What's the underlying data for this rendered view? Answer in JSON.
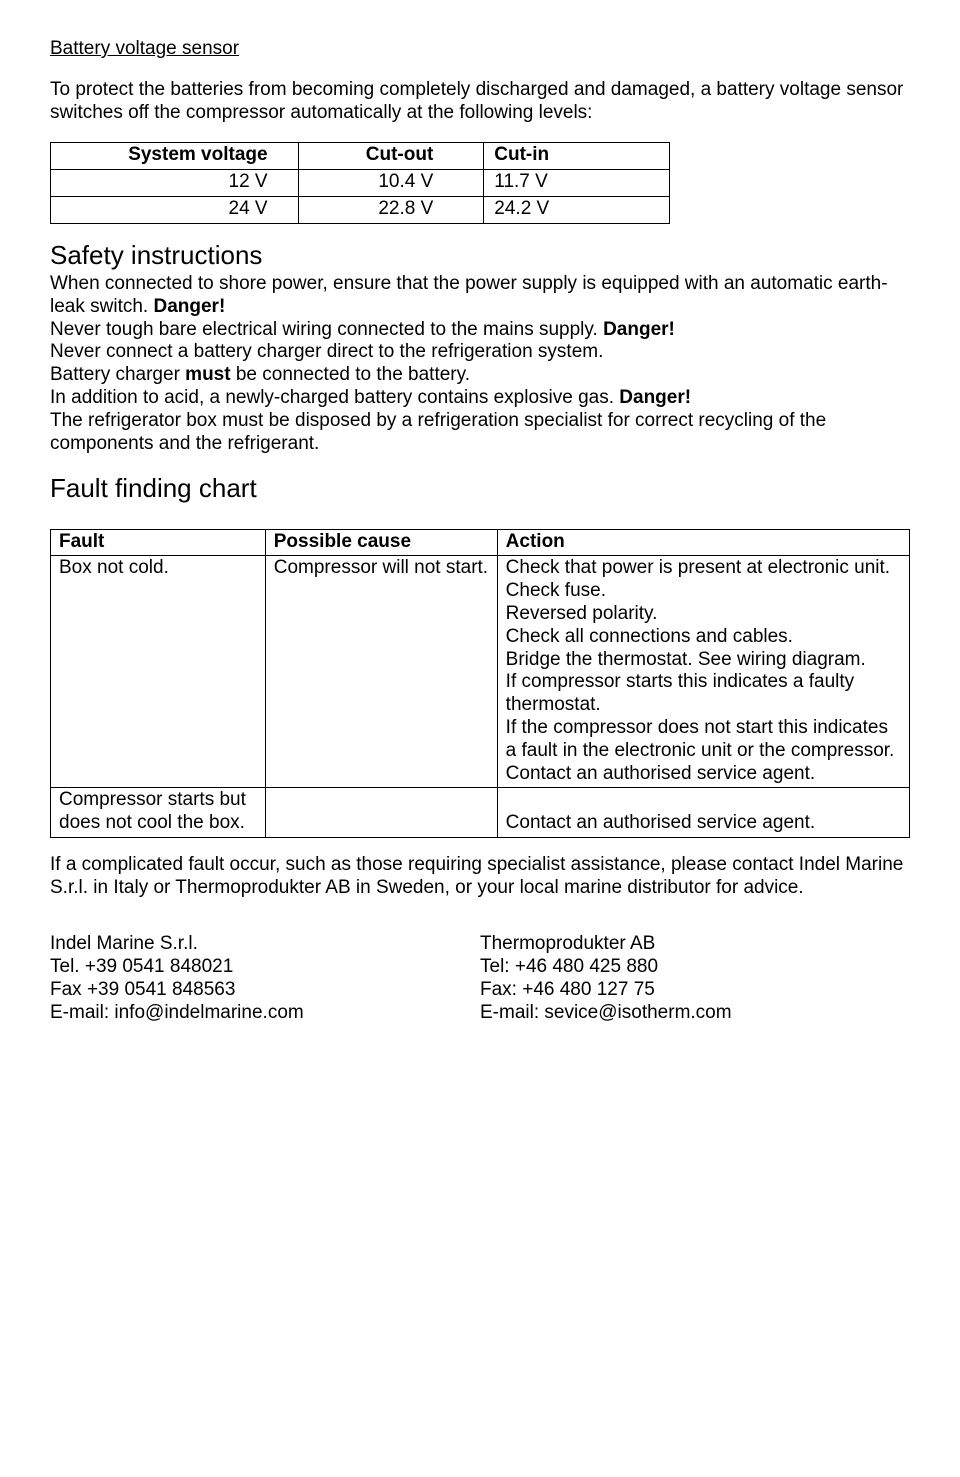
{
  "sec1": {
    "title": "Battery voltage sensor",
    "para": "To protect the batteries from becoming completely discharged and damaged, a battery voltage sensor switches off the compressor automatically at the following levels:"
  },
  "voltageTable": {
    "header": {
      "sys": "System voltage",
      "out": "Cut-out",
      "in": "Cut-in"
    },
    "rows": [
      {
        "sys": "12 V",
        "out": "10.4 V",
        "in": "11.7 V"
      },
      {
        "sys": "24 V",
        "out": "22.8 V",
        "in": "24.2 V"
      }
    ]
  },
  "safety": {
    "title": "Safety instructions",
    "l1": "When connected to shore power, ensure that the power supply is equipped with an automatic earth-leak switch. ",
    "d1": "Danger!",
    "l2": "Never tough bare electrical wiring connected to the mains supply. ",
    "d2": "Danger!",
    "l3": "Never connect a battery charger direct to the refrigeration system.",
    "l4a": "Battery charger ",
    "l4b": "must",
    "l4c": " be connected to the battery.",
    "l5": "In addition to acid, a newly-charged battery contains explosive gas. ",
    "d3": "Danger!",
    "l6": "The refrigerator box must be disposed by a refrigeration specialist for correct recycling of the components and the refrigerant."
  },
  "faultChart": {
    "title": "Fault finding chart",
    "header": {
      "fault": "Fault",
      "cause": "Possible cause",
      "action": "Action"
    },
    "r1": {
      "fault": "Box not cold.",
      "cause": "Compressor will not start.",
      "action": "Check that power is present at electronic unit.\nCheck fuse.\nReversed polarity.\nCheck all connections and cables.\nBridge the thermostat. See wiring diagram.\nIf compressor starts this indicates a faulty thermostat.\nIf the compressor does not start this indicates a fault in the electronic unit or the compressor. Contact an authorised service agent."
    },
    "r2": {
      "fault": "Compressor starts but does not cool the box.",
      "cause": "",
      "action": "Contact an authorised service agent."
    }
  },
  "afterTable": "If a complicated fault occur, such as those requiring specialist assistance, please contact Indel Marine S.r.l. in Italy or Thermoprodukter AB in Sweden, or your local marine distributor for advice.",
  "contacts": {
    "left": {
      "name": "Indel Marine S.r.l.",
      "tel": "Tel. +39 0541 848021",
      "fax": "Fax +39 0541 848563",
      "email": "E-mail: info@indelmarine.com"
    },
    "right": {
      "name": "Thermoprodukter AB",
      "tel": "Tel:  +46 480 425 880",
      "fax": "Fax: +46 480 127 75",
      "email": "E-mail: sevice@isotherm.com"
    }
  }
}
